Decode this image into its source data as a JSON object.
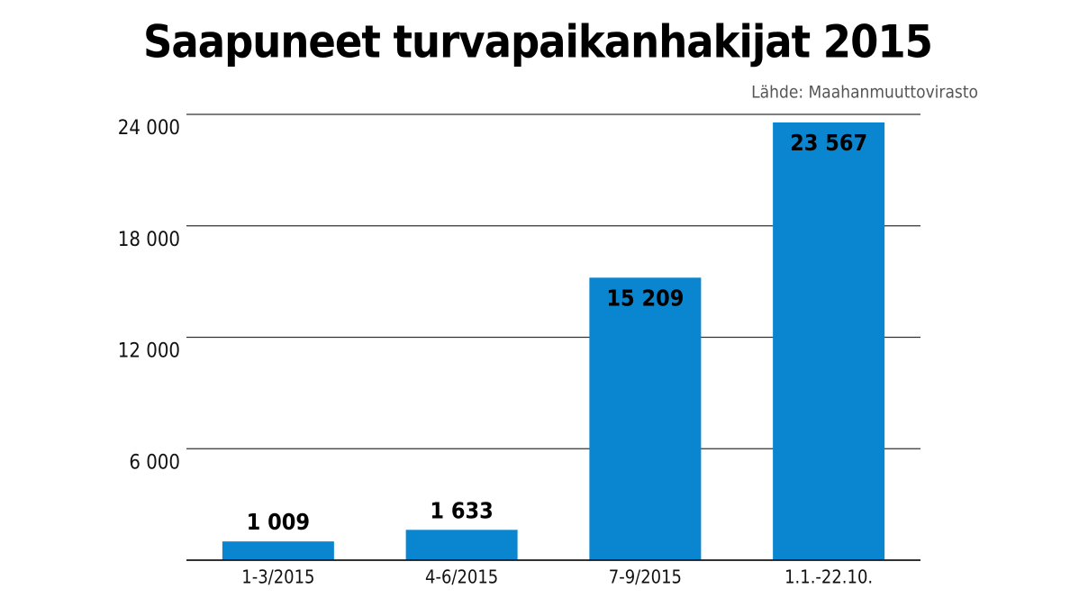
{
  "chart_data": {
    "type": "bar",
    "title": "Saapuneet turvapaikanhakijat 2015",
    "source": "Lähde: Maahanmuuttovirasto",
    "categories": [
      "1-3/2015",
      "4-6/2015",
      "7-9/2015",
      "1.1.-22.10."
    ],
    "values": [
      1009,
      1633,
      15209,
      23567
    ],
    "value_labels": [
      "1 009",
      "1 633",
      "15 209",
      "23 567"
    ],
    "color": "#0a86d0",
    "ylim": [
      0,
      24000
    ],
    "yticks": [
      {
        "value": 0,
        "label": ""
      },
      {
        "value": 6000,
        "label": "6 000"
      },
      {
        "value": 12000,
        "label": "12 000"
      },
      {
        "value": 18000,
        "label": "18 000"
      },
      {
        "value": 24000,
        "label": "24 000"
      }
    ],
    "grid": true
  }
}
